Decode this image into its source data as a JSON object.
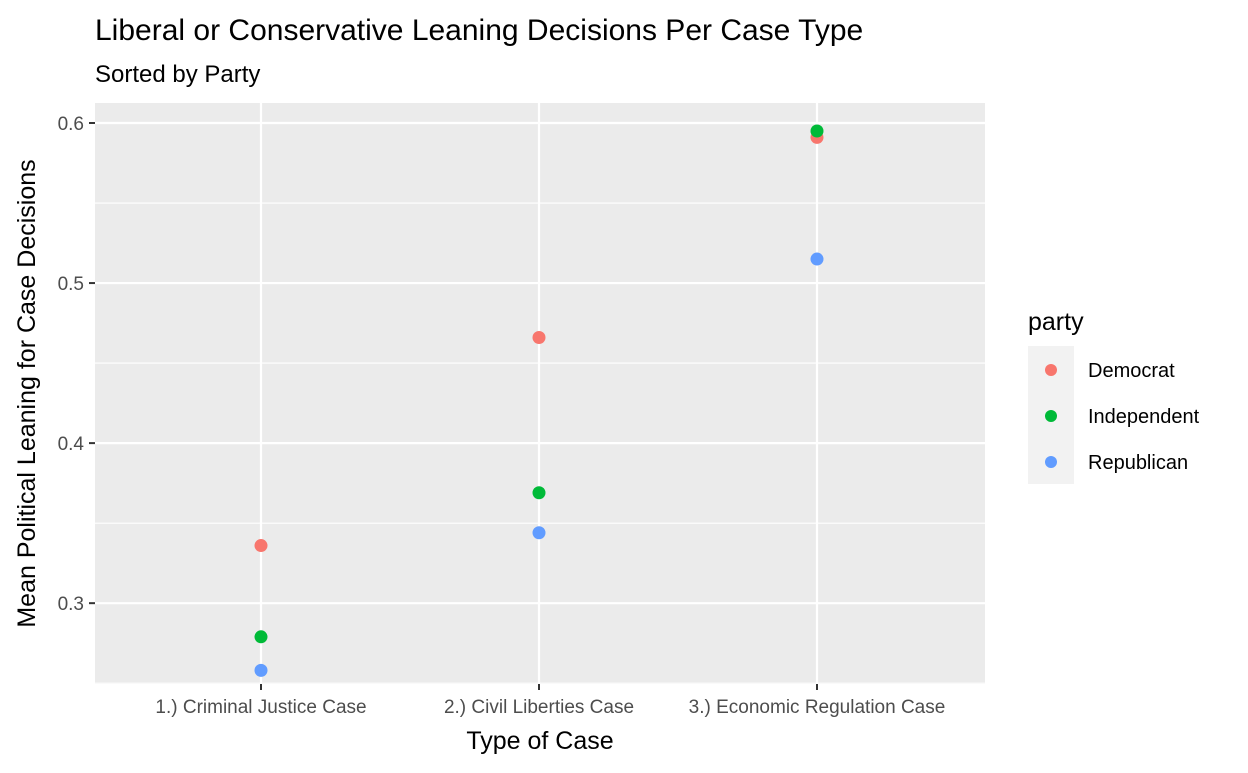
{
  "chart_data": {
    "type": "scatter",
    "title": "Liberal or Conservative Leaning Decisions Per Case Type",
    "subtitle": "Sorted by Party",
    "xlabel": "Type of Case",
    "ylabel": "Mean Political Leaning for Case Decisions",
    "categories": [
      "1.) Criminal Justice Case",
      "2.) Civil Liberties Case",
      "3.) Economic Regulation Case"
    ],
    "yticks": [
      "0.3",
      "0.4",
      "0.5",
      "0.6"
    ],
    "ylim": [
      0.2495,
      0.6125
    ],
    "grid": true,
    "legend": {
      "title": "party",
      "position": "right"
    },
    "series": [
      {
        "name": "Democrat",
        "color": "#F8766D",
        "values": [
          0.336,
          0.466,
          0.591
        ]
      },
      {
        "name": "Independent",
        "color": "#00BA38",
        "values": [
          0.279,
          0.369,
          0.595
        ]
      },
      {
        "name": "Republican",
        "color": "#619CFF",
        "values": [
          0.258,
          0.344,
          0.515
        ]
      }
    ],
    "panel_background": "#EBEBEB",
    "grid_color": "#FFFFFF"
  }
}
